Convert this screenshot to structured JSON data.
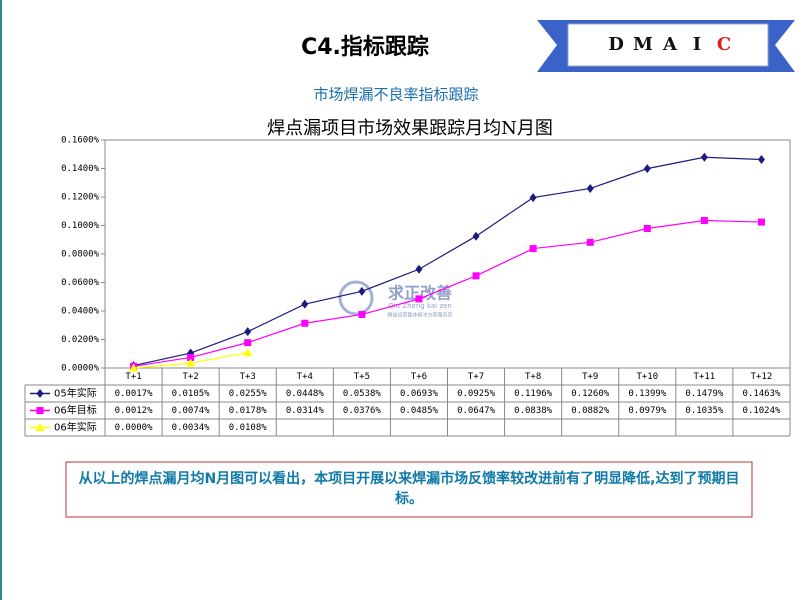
{
  "header": {
    "title": "C4.指标跟踪",
    "dmaic": [
      "D",
      "M",
      "A",
      "I",
      "C"
    ],
    "dmaic_current": "C"
  },
  "subtitle": "市场焊漏不良率指标跟踪",
  "chart_data": {
    "type": "line",
    "title": "焊点漏项目市场效果跟踪月均N月图",
    "categories": [
      "T+1",
      "T+2",
      "T+3",
      "T+4",
      "T+5",
      "T+6",
      "T+7",
      "T+8",
      "T+9",
      "T+10",
      "T+11",
      "T+12"
    ],
    "series": [
      {
        "name": "05年实际",
        "color": "#1c1c80",
        "marker": "diamond",
        "values": [
          0.0017,
          0.0105,
          0.0255,
          0.0448,
          0.0538,
          0.0693,
          0.0925,
          0.1196,
          0.126,
          0.1399,
          0.1479,
          0.1463
        ],
        "value_labels": [
          "0.0017%",
          "0.0105%",
          "0.0255%",
          "0.0448%",
          "0.0538%",
          "0.0693%",
          "0.0925%",
          "0.1196%",
          "0.1260%",
          "0.1399%",
          "0.1479%",
          "0.1463%"
        ]
      },
      {
        "name": "06年目标",
        "color": "#ff00ff",
        "marker": "square",
        "values": [
          0.0012,
          0.0074,
          0.0178,
          0.0314,
          0.0376,
          0.0485,
          0.0647,
          0.0838,
          0.0882,
          0.0979,
          0.1035,
          0.1024
        ],
        "value_labels": [
          "0.0012%",
          "0.0074%",
          "0.0178%",
          "0.0314%",
          "0.0376%",
          "0.0485%",
          "0.0647%",
          "0.0838%",
          "0.0882%",
          "0.0979%",
          "0.1035%",
          "0.1024%"
        ]
      },
      {
        "name": "06年实际",
        "color": "#ffff00",
        "marker": "triangle",
        "values": [
          0.0,
          0.0034,
          0.0108,
          null,
          null,
          null,
          null,
          null,
          null,
          null,
          null,
          null
        ],
        "value_labels": [
          "0.0000%",
          "0.0034%",
          "0.0108%",
          null,
          null,
          null,
          null,
          null,
          null,
          null,
          null,
          null
        ]
      }
    ],
    "ylim": [
      0,
      0.16
    ],
    "yticks": [
      {
        "value": 0,
        "label": "0.0000%"
      },
      {
        "value": 0.02,
        "label": "0.0200%"
      },
      {
        "value": 0.04,
        "label": "0.0400%"
      },
      {
        "value": 0.06,
        "label": "0.0600%"
      },
      {
        "value": 0.08,
        "label": "0.0800%"
      },
      {
        "value": 0.1,
        "label": "0.1000%"
      },
      {
        "value": 0.12,
        "label": "0.1200%"
      },
      {
        "value": 0.14,
        "label": "0.1400%"
      },
      {
        "value": 0.16,
        "label": "0.1600%"
      }
    ],
    "grid": false
  },
  "watermark": {
    "name": "求正改善",
    "pinyin": "Qiu Zheng kai zen",
    "slogan": "精益运营整体解决方案服务商"
  },
  "conclusion": "从以上的焊点漏月均N月图可以看出，本项目开展以来焊漏市场反馈率较改进前有了明显降低,达到了预期目标。"
}
